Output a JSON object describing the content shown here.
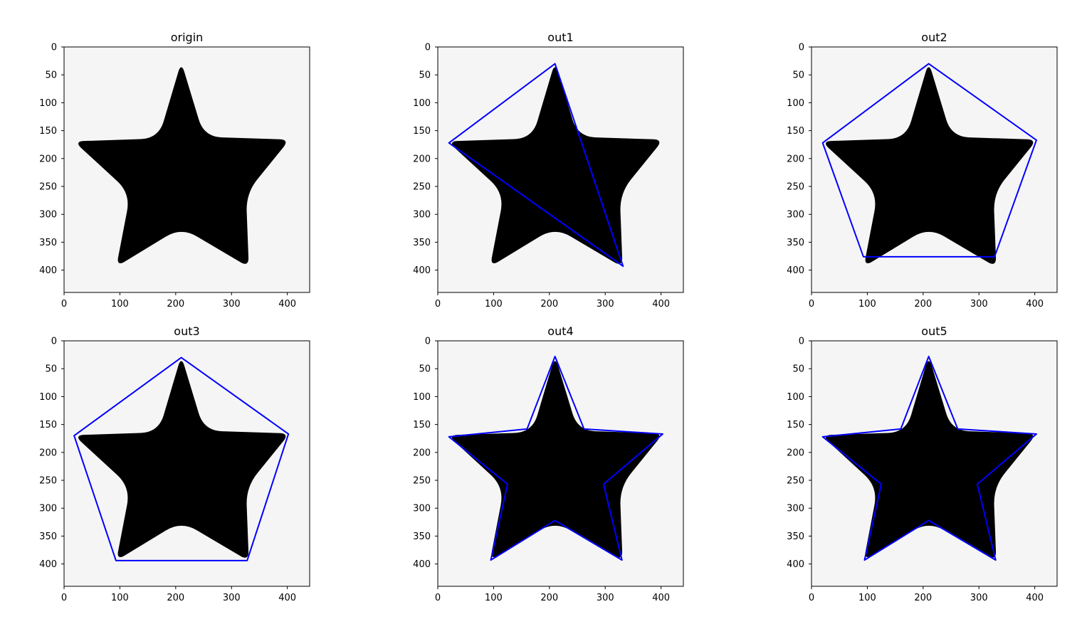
{
  "figure": {
    "background": "#ffffff",
    "image_background": "#f5f5f5",
    "shape_color": "#000000",
    "overlay_color": "#0000ff"
  },
  "star": {
    "tips": [
      [
        210,
        30
      ],
      [
        402,
        167
      ],
      [
        330,
        393
      ],
      [
        95,
        392
      ],
      [
        20,
        170
      ]
    ],
    "inner": [
      [
        250,
        162
      ],
      [
        325,
        262
      ],
      [
        210,
        322
      ],
      [
        120,
        262
      ],
      [
        170,
        165
      ]
    ]
  },
  "chart_data": [
    {
      "type": "image",
      "title": "origin",
      "xlim": [
        0,
        440
      ],
      "ylim": [
        440,
        0
      ],
      "xticks": [
        0,
        100,
        200,
        300,
        400
      ],
      "yticks": [
        0,
        50,
        100,
        150,
        200,
        250,
        300,
        350,
        400
      ],
      "overlay": []
    },
    {
      "type": "image",
      "title": "out1",
      "xlim": [
        0,
        440
      ],
      "ylim": [
        440,
        0
      ],
      "xticks": [
        0,
        100,
        200,
        300,
        400
      ],
      "yticks": [
        0,
        50,
        100,
        150,
        200,
        250,
        300,
        350,
        400
      ],
      "overlay": [
        [
          210,
          30
        ],
        [
          20,
          172
        ],
        [
          332,
          393
        ]
      ]
    },
    {
      "type": "image",
      "title": "out2",
      "xlim": [
        0,
        440
      ],
      "ylim": [
        440,
        0
      ],
      "xticks": [
        0,
        100,
        200,
        300,
        400
      ],
      "yticks": [
        0,
        50,
        100,
        150,
        200,
        250,
        300,
        350,
        400
      ],
      "overlay": [
        [
          210,
          30
        ],
        [
          403,
          167
        ],
        [
          328,
          376
        ],
        [
          93,
          376
        ],
        [
          20,
          172
        ]
      ]
    },
    {
      "type": "image",
      "title": "out3",
      "xlim": [
        0,
        440
      ],
      "ylim": [
        440,
        0
      ],
      "xticks": [
        0,
        100,
        200,
        300,
        400
      ],
      "yticks": [
        0,
        50,
        100,
        150,
        200,
        250,
        300,
        350,
        400
      ],
      "overlay": [
        [
          210,
          30
        ],
        [
          402,
          167
        ],
        [
          328,
          394
        ],
        [
          93,
          394
        ],
        [
          18,
          170
        ]
      ]
    },
    {
      "type": "image",
      "title": "out4",
      "xlim": [
        0,
        440
      ],
      "ylim": [
        440,
        0
      ],
      "xticks": [
        0,
        100,
        200,
        300,
        400
      ],
      "yticks": [
        0,
        50,
        100,
        150,
        200,
        250,
        300,
        350,
        400
      ],
      "overlay": [
        [
          210,
          28
        ],
        [
          262,
          158
        ],
        [
          403,
          167
        ],
        [
          297,
          257
        ],
        [
          330,
          393
        ],
        [
          210,
          322
        ],
        [
          95,
          393
        ],
        [
          125,
          257
        ],
        [
          20,
          172
        ],
        [
          160,
          158
        ]
      ]
    },
    {
      "type": "image",
      "title": "out5",
      "xlim": [
        0,
        440
      ],
      "ylim": [
        440,
        0
      ],
      "xticks": [
        0,
        100,
        200,
        300,
        400
      ],
      "yticks": [
        0,
        50,
        100,
        150,
        200,
        250,
        300,
        350,
        400
      ],
      "overlay": [
        [
          210,
          28
        ],
        [
          262,
          158
        ],
        [
          403,
          167
        ],
        [
          297,
          257
        ],
        [
          330,
          393
        ],
        [
          210,
          322
        ],
        [
          95,
          393
        ],
        [
          125,
          257
        ],
        [
          20,
          172
        ],
        [
          160,
          158
        ]
      ]
    }
  ]
}
